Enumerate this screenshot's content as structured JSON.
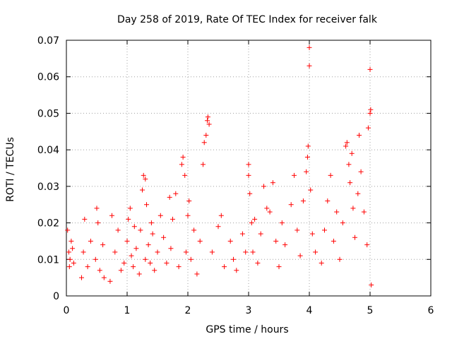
{
  "chart_data": {
    "type": "scatter",
    "title": "Day 258 of 2019, Rate Of TEC Index for receiver falk",
    "xlabel": "GPS time / hours",
    "ylabel": "ROTI / TECUs",
    "xlim": [
      0,
      6
    ],
    "ylim": [
      0,
      0.07
    ],
    "xticks": [
      0,
      1,
      2,
      3,
      4,
      5,
      6
    ],
    "xtick_labels": [
      "0",
      "1",
      "2",
      "3",
      "4",
      "5",
      "6"
    ],
    "yticks": [
      0,
      0.01,
      0.02,
      0.03,
      0.04,
      0.05,
      0.06,
      0.07
    ],
    "ytick_labels": [
      "0",
      "0.01",
      "0.02",
      "0.03",
      "0.04",
      "0.05",
      "0.06",
      "0.07"
    ],
    "grid": true,
    "marker": "+",
    "marker_color": "#ff0000",
    "series": [
      {
        "name": "ROTI",
        "x": [
          0.02,
          0.04,
          0.05,
          0.06,
          0.08,
          0.1,
          0.12,
          0.25,
          0.28,
          0.3,
          0.35,
          0.4,
          0.48,
          0.5,
          0.52,
          0.55,
          0.6,
          0.62,
          0.72,
          0.75,
          0.8,
          0.85,
          0.9,
          0.95,
          1.0,
          1.02,
          1.05,
          1.07,
          1.1,
          1.12,
          1.15,
          1.2,
          1.22,
          1.25,
          1.27,
          1.3,
          1.3,
          1.32,
          1.35,
          1.38,
          1.4,
          1.42,
          1.45,
          1.5,
          1.55,
          1.6,
          1.65,
          1.7,
          1.72,
          1.75,
          1.8,
          1.85,
          1.9,
          1.92,
          1.95,
          1.97,
          2.0,
          2.02,
          2.05,
          2.1,
          2.15,
          2.2,
          2.25,
          2.27,
          2.3,
          2.32,
          2.33,
          2.35,
          2.4,
          2.5,
          2.55,
          2.6,
          2.7,
          2.75,
          2.8,
          2.9,
          2.95,
          3.0,
          3.0,
          3.02,
          3.05,
          3.07,
          3.1,
          3.15,
          3.2,
          3.25,
          3.3,
          3.35,
          3.4,
          3.45,
          3.5,
          3.55,
          3.6,
          3.7,
          3.75,
          3.8,
          3.85,
          3.9,
          3.95,
          3.97,
          3.98,
          4.0,
          4.0,
          4.02,
          4.05,
          4.1,
          4.2,
          4.25,
          4.3,
          4.35,
          4.4,
          4.45,
          4.5,
          4.55,
          4.6,
          4.62,
          4.65,
          4.67,
          4.7,
          4.72,
          4.75,
          4.8,
          4.82,
          4.85,
          4.9,
          4.95,
          4.97,
          5.0,
          5.0,
          5.01,
          5.02
        ],
        "y": [
          0.018,
          0.012,
          0.008,
          0.01,
          0.015,
          0.013,
          0.009,
          0.005,
          0.012,
          0.021,
          0.008,
          0.015,
          0.01,
          0.024,
          0.02,
          0.007,
          0.014,
          0.005,
          0.004,
          0.022,
          0.012,
          0.018,
          0.007,
          0.009,
          0.015,
          0.021,
          0.024,
          0.011,
          0.008,
          0.019,
          0.013,
          0.006,
          0.018,
          0.029,
          0.033,
          0.032,
          0.01,
          0.025,
          0.014,
          0.009,
          0.02,
          0.017,
          0.007,
          0.012,
          0.022,
          0.016,
          0.009,
          0.027,
          0.013,
          0.021,
          0.028,
          0.008,
          0.036,
          0.038,
          0.033,
          0.012,
          0.022,
          0.026,
          0.01,
          0.018,
          0.006,
          0.015,
          0.036,
          0.042,
          0.044,
          0.048,
          0.049,
          0.047,
          0.012,
          0.019,
          0.022,
          0.008,
          0.015,
          0.01,
          0.007,
          0.017,
          0.012,
          0.033,
          0.036,
          0.028,
          0.02,
          0.012,
          0.021,
          0.009,
          0.017,
          0.03,
          0.024,
          0.023,
          0.031,
          0.015,
          0.008,
          0.02,
          0.014,
          0.025,
          0.033,
          0.018,
          0.011,
          0.026,
          0.034,
          0.038,
          0.041,
          0.063,
          0.068,
          0.029,
          0.017,
          0.012,
          0.009,
          0.018,
          0.026,
          0.033,
          0.015,
          0.023,
          0.01,
          0.02,
          0.041,
          0.042,
          0.036,
          0.031,
          0.039,
          0.024,
          0.016,
          0.028,
          0.044,
          0.034,
          0.023,
          0.014,
          0.046,
          0.05,
          0.062,
          0.051,
          0.003
        ]
      }
    ]
  }
}
